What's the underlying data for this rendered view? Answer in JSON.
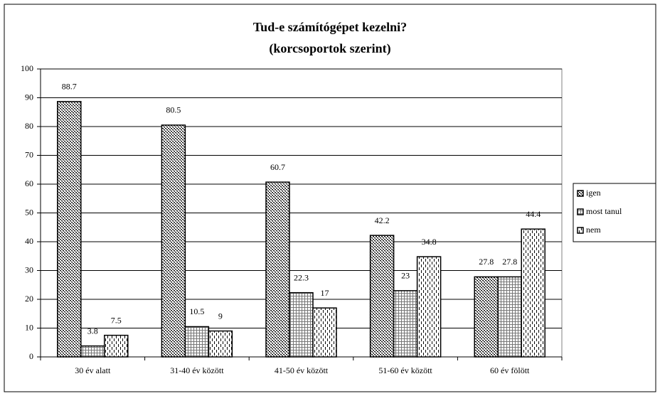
{
  "chart_data": {
    "type": "bar",
    "title": "Tud-e számítógépet kezelni?",
    "subtitle": "(korcsoportok szerint)",
    "categories": [
      "30 év alatt",
      "31-40 év között",
      "41-50 év között",
      "51-60 év között",
      "60 év fölött"
    ],
    "series": [
      {
        "name": "igen",
        "color": "#000000",
        "pattern": "dots",
        "values": [
          88.7,
          80.5,
          60.7,
          42.2,
          27.8
        ]
      },
      {
        "name": "most tanul",
        "color": "#000000",
        "pattern": "grid",
        "values": [
          3.8,
          10.5,
          22.3,
          23,
          27.8
        ]
      },
      {
        "name": "nem",
        "color": "#000000",
        "pattern": "dashes",
        "values": [
          7.5,
          9,
          17,
          34.8,
          44.4
        ]
      }
    ],
    "ylim": [
      0,
      100
    ],
    "yticks": [
      0,
      10,
      20,
      30,
      40,
      50,
      60,
      70,
      80,
      90,
      100
    ],
    "grid": true,
    "legend": "right"
  }
}
